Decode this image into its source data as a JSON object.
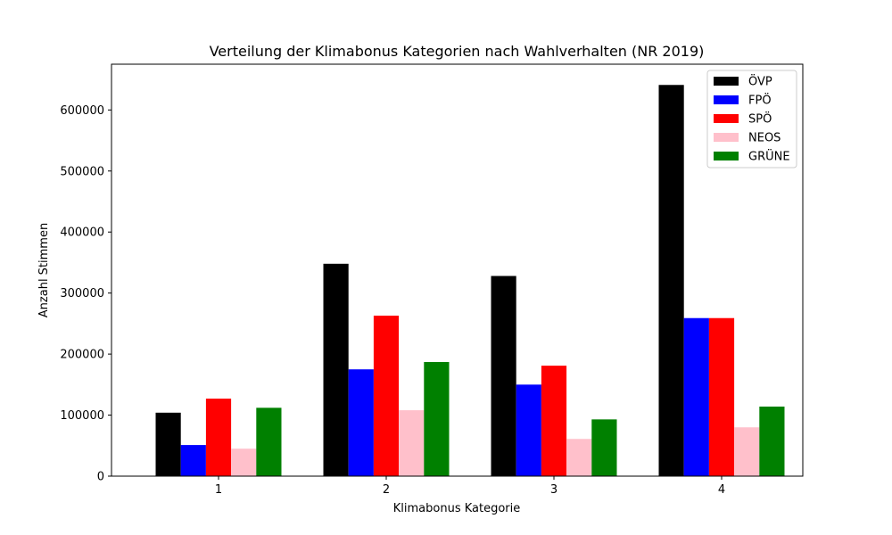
{
  "chart_data": {
    "type": "bar",
    "title": "Verteilung der Klimabonus Kategorien nach Wahlverhalten (NR 2019)",
    "xlabel": "Klimabonus Kategorie",
    "ylabel": "Anzahl Stimmen",
    "categories": [
      "1",
      "2",
      "3",
      "4"
    ],
    "ylim": [
      0,
      675000
    ],
    "yticks": [
      0,
      100000,
      200000,
      300000,
      400000,
      500000,
      600000
    ],
    "ytick_labels": [
      "0",
      "100000",
      "200000",
      "300000",
      "400000",
      "500000",
      "600000"
    ],
    "grid": false,
    "legend_position": "top-right",
    "series": [
      {
        "name": "ÖVP",
        "color": "#000000",
        "values": [
          104000,
          348000,
          328000,
          641000
        ]
      },
      {
        "name": "FPÖ",
        "color": "#0000ff",
        "values": [
          51000,
          175000,
          150000,
          259000
        ]
      },
      {
        "name": "SPÖ",
        "color": "#ff0000",
        "values": [
          127000,
          263000,
          181000,
          259000
        ]
      },
      {
        "name": "NEOS",
        "color": "#ffc0cb",
        "values": [
          45000,
          108000,
          61000,
          80000
        ]
      },
      {
        "name": "GRÜNE",
        "color": "#008000",
        "values": [
          112000,
          187000,
          93000,
          114000
        ]
      }
    ]
  }
}
